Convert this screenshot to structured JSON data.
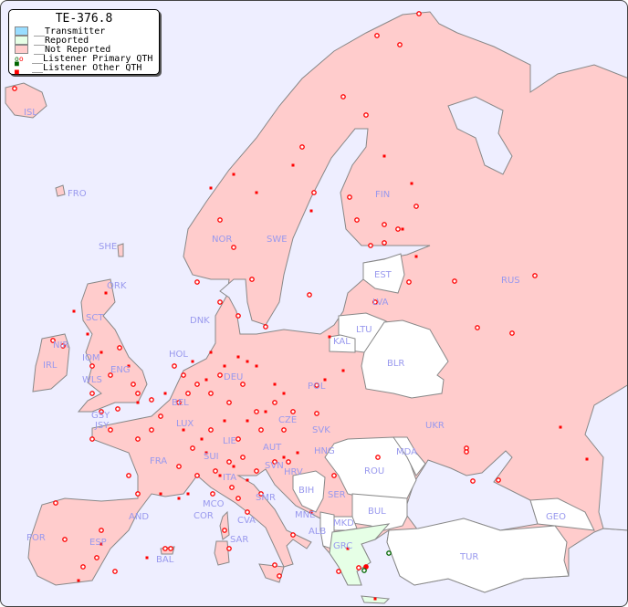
{
  "legend": {
    "title": "TE-376.8",
    "items": [
      {
        "label": "__Transmitter",
        "color": "#99ddff"
      },
      {
        "label": "__Reported",
        "color": "#e6ffe6"
      },
      {
        "label": "__Not Reported",
        "color": "#ffcccc"
      },
      {
        "label": "__Listener Primary QTH",
        "colors": [
          "#006600",
          "#ff0000"
        ]
      },
      {
        "label": "__Listener Other QTH",
        "colors": [
          "#006600",
          "#ff0000"
        ]
      }
    ]
  },
  "colors": {
    "sea": "#eeeeff",
    "not_reported": "#ffcccc",
    "reported": "#e6ffe6",
    "no_data": "#ffffff",
    "label": "#9999ee",
    "listener": "#ff0000"
  },
  "countries": {
    "not_reported": [
      "ISL",
      "FRO",
      "SHE",
      "ORK",
      "NOR",
      "SWE",
      "FIN",
      "LVA",
      "RUS",
      "DNK",
      "HOL",
      "DEU",
      "POL",
      "BEL",
      "LUX",
      "CZE",
      "SVK",
      "UKR",
      "HNG",
      "AUT",
      "LIE",
      "SUI",
      "FRA",
      "GSY",
      "JSY",
      "IRL",
      "NIR",
      "IOM",
      "WLS",
      "ENG",
      "SCT",
      "ITA",
      "SVN",
      "HRV",
      "SER",
      "MNE",
      "COR",
      "MCO",
      "SMR",
      "CVA",
      "SAR",
      "AND",
      "ESP",
      "POR",
      "BAL"
    ],
    "reported": [
      "GRC"
    ],
    "no_data": [
      "EST",
      "LTU",
      "KAL",
      "BLR",
      "MDA",
      "ROU",
      "BUL",
      "BIH",
      "ALB",
      "MKD",
      "TUR",
      "GEO"
    ]
  },
  "labels": [
    "ISL",
    "FRO",
    "SHE",
    "ORK",
    "NOR",
    "SWE",
    "FIN",
    "EST",
    "LVA",
    "LTU",
    "KAL",
    "BLR",
    "RUS",
    "DNK",
    "HOL",
    "DEU",
    "POL",
    "BEL",
    "LUX",
    "CZE",
    "SVK",
    "UKR",
    "MDA",
    "HNG",
    "AUT",
    "LIE",
    "SUI",
    "FRA",
    "GSY",
    "JSY",
    "IRL",
    "NIR",
    "IOM",
    "WLS",
    "ENG",
    "SCT",
    "ITA",
    "SVN",
    "HRV",
    "BIH",
    "SER",
    "ROU",
    "BUL",
    "MNE",
    "ALB",
    "MKD",
    "GRC",
    "TUR",
    "GEO",
    "COR",
    "MCO",
    "SMR",
    "CVA",
    "SAR",
    "AND",
    "ESP",
    "POR",
    "BAL"
  ]
}
